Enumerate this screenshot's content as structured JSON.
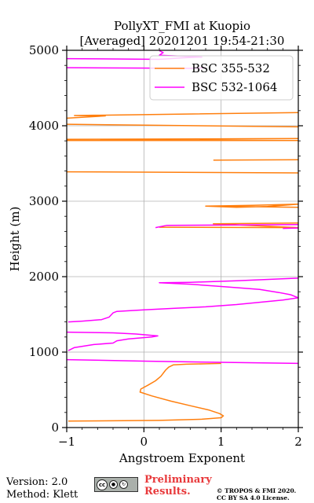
{
  "chart_data": {
    "type": "line",
    "title": "PollyXT_FMI at Kuopio",
    "subtitle": "[Averaged] 20201201 19:54-21:30",
    "xlabel": "Angstroem Exponent",
    "ylabel": "Height (m)",
    "xlim": [
      -1,
      2
    ],
    "ylim": [
      0,
      5000
    ],
    "xticks": [
      -1,
      0,
      1,
      2
    ],
    "yticks": [
      0,
      1000,
      2000,
      3000,
      4000,
      5000
    ],
    "grid": true,
    "legend_position": "top-right",
    "series": [
      {
        "name": "BSC 355-532",
        "color": "#ff7f0e",
        "points": [
          [
            -0.98,
            85
          ],
          [
            0.2,
            95
          ],
          [
            0.75,
            110
          ],
          [
            1.0,
            130
          ],
          [
            1.03,
            155
          ],
          [
            0.98,
            185
          ],
          [
            0.85,
            230
          ],
          [
            0.6,
            290
          ],
          [
            0.35,
            350
          ],
          [
            0.1,
            420
          ],
          [
            -0.05,
            470
          ],
          [
            -0.04,
            510
          ],
          [
            0.05,
            560
          ],
          [
            0.15,
            620
          ],
          [
            0.22,
            680
          ],
          [
            0.28,
            760
          ],
          [
            0.32,
            800
          ],
          [
            0.38,
            830
          ],
          [
            0.55,
            840
          ],
          [
            0.8,
            845
          ],
          [
            1.0,
            850
          ],
          [
            null,
            null
          ],
          [
            0.8,
            2935
          ],
          [
            1.4,
            2945
          ],
          [
            2.0,
            2960
          ],
          [
            1.6,
            2930
          ],
          [
            1.2,
            2920
          ],
          [
            0.8,
            2935
          ],
          [
            2.0,
            2920
          ],
          [
            null,
            null
          ],
          [
            0.2,
            2655
          ],
          [
            2.0,
            2650
          ],
          [
            0.9,
            2700
          ],
          [
            2.0,
            2710
          ],
          [
            null,
            null
          ],
          [
            -1.0,
            3390
          ],
          [
            2.0,
            3375
          ],
          [
            null,
            null
          ],
          [
            0.9,
            3545
          ],
          [
            2.0,
            3550
          ],
          [
            null,
            null
          ],
          [
            -1.0,
            3805
          ],
          [
            2.0,
            3805
          ],
          [
            -1.0,
            3820
          ],
          [
            2.0,
            3830
          ],
          [
            null,
            null
          ],
          [
            -1.0,
            4020
          ],
          [
            2.0,
            3985
          ],
          [
            null,
            null
          ],
          [
            -1.0,
            4100
          ],
          [
            -0.5,
            4130
          ],
          [
            -0.9,
            4135
          ],
          [
            2.0,
            4175
          ]
        ]
      },
      {
        "name": "BSC 532-1064",
        "color": "#ff00ff",
        "points": [
          [
            -1.0,
            900
          ],
          [
            0.0,
            880
          ],
          [
            1.0,
            865
          ],
          [
            2.0,
            850
          ],
          [
            null,
            null
          ],
          [
            -0.98,
            1020
          ],
          [
            -0.9,
            1060
          ],
          [
            -0.65,
            1100
          ],
          [
            -0.4,
            1120
          ],
          [
            -0.35,
            1150
          ],
          [
            -0.2,
            1175
          ],
          [
            0.1,
            1200
          ],
          [
            0.18,
            1215
          ],
          [
            -0.1,
            1240
          ],
          [
            -0.4,
            1255
          ],
          [
            -1.0,
            1265
          ],
          [
            null,
            null
          ],
          [
            -0.98,
            1400
          ],
          [
            -0.8,
            1410
          ],
          [
            -0.55,
            1430
          ],
          [
            -0.45,
            1465
          ],
          [
            -0.4,
            1520
          ],
          [
            -0.35,
            1540
          ],
          [
            0.0,
            1560
          ],
          [
            0.4,
            1580
          ],
          [
            0.8,
            1600
          ],
          [
            1.2,
            1630
          ],
          [
            1.5,
            1660
          ],
          [
            1.8,
            1690
          ],
          [
            2.0,
            1720
          ],
          [
            1.9,
            1760
          ],
          [
            1.75,
            1790
          ],
          [
            1.5,
            1830
          ],
          [
            1.0,
            1870
          ],
          [
            0.6,
            1900
          ],
          [
            0.2,
            1920
          ],
          [
            0.6,
            1925
          ],
          [
            1.2,
            1945
          ],
          [
            2.0,
            1980
          ],
          [
            null,
            null
          ],
          [
            0.15,
            2650
          ],
          [
            0.3,
            2680
          ],
          [
            2.0,
            2690
          ],
          [
            null,
            null
          ],
          [
            1.8,
            2640
          ],
          [
            2.0,
            2645
          ],
          [
            null,
            null
          ],
          [
            -1.0,
            4770
          ],
          [
            0.0,
            4765
          ],
          [
            0.6,
            4760
          ],
          [
            0.8,
            4770
          ],
          [
            null,
            null
          ],
          [
            -1.0,
            4890
          ],
          [
            0.2,
            4880
          ],
          [
            0.5,
            4900
          ],
          [
            0.75,
            4910
          ],
          [
            0.2,
            4935
          ],
          [
            0.25,
            4970
          ],
          [
            0.2,
            4995
          ]
        ]
      }
    ]
  },
  "footer": {
    "version": "Version: 2.0",
    "method": "Method: Klett",
    "preliminary_line1": "Preliminary",
    "preliminary_line2": "Results.",
    "copyright_line1": "© TROPOS & FMI 2020.",
    "copyright_line2": "CC BY SA 4.0 License.",
    "license_icon": "cc-by-sa-icon",
    "license_cc": "cc",
    "license_by": "by",
    "license_sa": "sa"
  }
}
